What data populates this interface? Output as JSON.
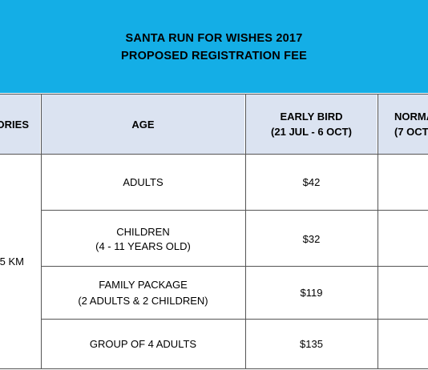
{
  "banner": {
    "title_line1": "SANTA RUN FOR WISHES 2017",
    "title_line2": "PROPOSED REGISTRATION FEE",
    "color": "#14aee6"
  },
  "table": {
    "headers": {
      "category": "CATEGORIES",
      "age": "AGE",
      "early_bird": "EARLY BIRD",
      "early_bird_dates": "(21 JUL - 6 OCT)",
      "normal": "NORMAL",
      "normal_dates": "(7 OCT"
    },
    "category_value": "5 KM",
    "rows": [
      {
        "age_line1": "ADULTS",
        "age_line2": "",
        "early_bird": "$42"
      },
      {
        "age_line1": "CHILDREN",
        "age_line2": "(4 - 11 YEARS OLD)",
        "early_bird": "$32"
      },
      {
        "age_line1": "FAMILY PACKAGE",
        "age_line2": "(2 ADULTS & 2 CHILDREN)",
        "early_bird": "$119"
      },
      {
        "age_line1": "GROUP OF 4 ADULTS",
        "age_line2": "",
        "early_bird": "$135"
      }
    ]
  }
}
